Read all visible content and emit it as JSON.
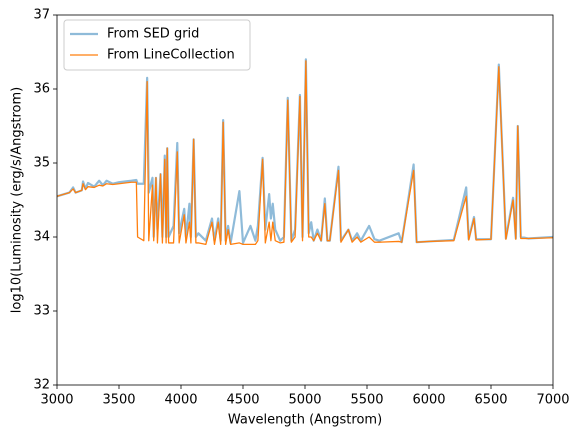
{
  "chart_data": {
    "type": "line",
    "x_label": "Wavelength (Angstrom)",
    "y_label": "log10(Luminosity (erg/s/Angstrom)",
    "x": [
      3000,
      3100,
      3130,
      3150,
      3200,
      3210,
      3230,
      3250,
      3300,
      3340,
      3370,
      3400,
      3450,
      3500,
      3600,
      3640,
      3650,
      3700,
      3727,
      3740,
      3770,
      3780,
      3798,
      3810,
      3835,
      3850,
      3869,
      3880,
      3889,
      3900,
      3940,
      3970,
      3985,
      4026,
      4040,
      4068,
      4080,
      4102,
      4120,
      4140,
      4200,
      4250,
      4270,
      4300,
      4320,
      4340,
      4360,
      4380,
      4400,
      4471,
      4500,
      4560,
      4600,
      4620,
      4658,
      4680,
      4711,
      4725,
      4740,
      4760,
      4800,
      4830,
      4861,
      4890,
      4920,
      4959,
      4980,
      5007,
      5030,
      5050,
      5070,
      5100,
      5130,
      5160,
      5180,
      5200,
      5270,
      5290,
      5350,
      5380,
      5420,
      5450,
      5517,
      5560,
      5600,
      5755,
      5780,
      5876,
      5900,
      6000,
      6200,
      6300,
      6320,
      6363,
      6380,
      6500,
      6563,
      6620,
      6678,
      6700,
      6716,
      6740,
      6800,
      7000
    ],
    "series": [
      {
        "name": "From SED grid",
        "color": "#1f77b4",
        "opacity": 0.5,
        "width": 2.2,
        "values": [
          34.55,
          34.6,
          34.67,
          34.6,
          34.63,
          34.75,
          34.65,
          34.73,
          34.68,
          34.76,
          34.7,
          34.76,
          34.72,
          34.74,
          34.76,
          34.77,
          34.72,
          34.72,
          36.15,
          34.6,
          34.8,
          34.0,
          34.8,
          34.1,
          34.85,
          34.0,
          35.1,
          34.0,
          35.2,
          34.0,
          34.15,
          35.27,
          34.05,
          34.38,
          34.0,
          34.45,
          34.0,
          35.32,
          34.0,
          34.05,
          33.95,
          34.25,
          33.95,
          34.25,
          33.95,
          35.58,
          33.95,
          34.15,
          33.92,
          34.62,
          33.92,
          34.15,
          33.95,
          34.15,
          35.07,
          34.1,
          34.58,
          34.25,
          34.45,
          34.1,
          33.95,
          34.0,
          35.88,
          33.95,
          34.1,
          35.92,
          34.0,
          36.4,
          34.05,
          34.2,
          33.95,
          34.1,
          33.95,
          34.52,
          33.95,
          33.95,
          34.95,
          33.95,
          34.1,
          33.95,
          34.05,
          33.95,
          34.15,
          33.97,
          33.95,
          34.05,
          33.93,
          34.98,
          33.93,
          33.94,
          33.96,
          34.67,
          33.97,
          34.27,
          33.97,
          33.97,
          36.33,
          33.98,
          34.53,
          33.98,
          35.5,
          34.0,
          33.98,
          34.0
        ]
      },
      {
        "name": "From LineCollection",
        "color": "#ff7f0e",
        "opacity": 1,
        "width": 1.3,
        "values": [
          34.55,
          34.6,
          34.65,
          34.6,
          34.63,
          34.72,
          34.64,
          34.68,
          34.67,
          34.7,
          34.69,
          34.72,
          34.71,
          34.72,
          34.74,
          34.74,
          34.0,
          33.95,
          36.1,
          33.95,
          34.7,
          33.95,
          34.8,
          33.92,
          34.85,
          33.92,
          35.05,
          33.92,
          35.2,
          33.92,
          33.92,
          35.15,
          33.92,
          34.3,
          33.92,
          34.2,
          33.92,
          35.32,
          33.92,
          33.92,
          33.9,
          34.2,
          33.9,
          34.2,
          33.9,
          35.55,
          33.9,
          34.1,
          33.9,
          33.92,
          33.9,
          33.9,
          33.9,
          33.95,
          35.05,
          33.92,
          34.2,
          33.95,
          34.2,
          33.95,
          33.92,
          33.93,
          35.85,
          33.93,
          34.0,
          35.9,
          33.95,
          36.38,
          34.0,
          34.0,
          33.95,
          34.05,
          33.95,
          34.45,
          33.95,
          33.95,
          34.9,
          33.93,
          34.1,
          33.93,
          34.0,
          33.93,
          34.0,
          33.93,
          33.93,
          33.94,
          33.93,
          34.9,
          33.93,
          33.94,
          33.95,
          34.55,
          33.96,
          34.25,
          33.96,
          33.97,
          36.3,
          33.97,
          34.5,
          33.97,
          35.5,
          33.98,
          33.98,
          33.99
        ]
      }
    ],
    "xlim": [
      3000,
      7000
    ],
    "xticks": [
      3000,
      3500,
      4000,
      4500,
      5000,
      5500,
      6000,
      6500,
      7000
    ],
    "ylim": [
      32,
      37
    ],
    "yticks": [
      32,
      33,
      34,
      35,
      36,
      37
    ],
    "legend": "upper left"
  }
}
